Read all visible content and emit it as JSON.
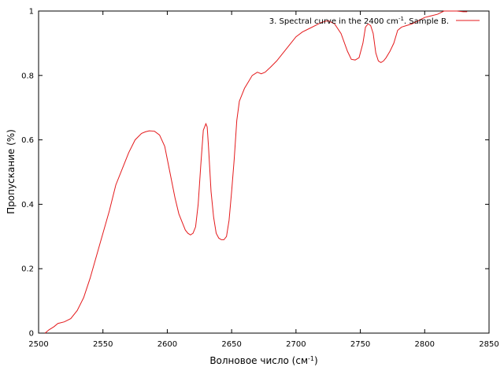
{
  "chart_data": {
    "type": "line",
    "title": "",
    "xlabel_main": "Волновое число (см",
    "xlabel_sup": "-1",
    "xlabel_close": ")",
    "ylabel": "Пропускание (%)",
    "xlim": [
      2500,
      2850
    ],
    "ylim": [
      0,
      1
    ],
    "x_ticks": [
      "2500",
      "2550",
      "2600",
      "2650",
      "2700",
      "2750",
      "2800",
      "2850"
    ],
    "y_ticks": [
      "0",
      "0.2",
      "0.4",
      "0.6",
      "0.8",
      "1"
    ],
    "grid": false,
    "legend_position": "top-right",
    "legend": {
      "text_main": "3. Spectral curve in the 2400 cm",
      "text_sup": "-1",
      "text_tail": ". Sample B."
    },
    "series": [
      {
        "color": "#e41a1c",
        "x": [
          2505,
          2508,
          2512,
          2515,
          2520,
          2525,
          2530,
          2535,
          2540,
          2545,
          2550,
          2555,
          2560,
          2565,
          2570,
          2575,
          2580,
          2583,
          2586,
          2590,
          2594,
          2598,
          2602,
          2606,
          2609,
          2612,
          2614,
          2616,
          2618,
          2620,
          2622,
          2624,
          2626,
          2628,
          2630,
          2631,
          2632,
          2634,
          2636,
          2638,
          2640,
          2642,
          2644,
          2646,
          2648,
          2650,
          2652,
          2654,
          2656,
          2658,
          2660,
          2663,
          2666,
          2670,
          2673,
          2676,
          2680,
          2685,
          2690,
          2695,
          2700,
          2705,
          2710,
          2715,
          2720,
          2725,
          2730,
          2735,
          2740,
          2743,
          2746,
          2749,
          2752,
          2754,
          2756,
          2758,
          2760,
          2762,
          2764,
          2766,
          2768,
          2770,
          2773,
          2776,
          2779,
          2782,
          2786,
          2790,
          2795,
          2800,
          2805,
          2810,
          2815,
          2820,
          2825,
          2830,
          2833
        ],
        "y": [
          0.0,
          0.01,
          0.02,
          0.03,
          0.035,
          0.045,
          0.07,
          0.11,
          0.17,
          0.24,
          0.31,
          0.38,
          0.46,
          0.51,
          0.56,
          0.6,
          0.62,
          0.625,
          0.628,
          0.627,
          0.615,
          0.58,
          0.5,
          0.42,
          0.37,
          0.34,
          0.32,
          0.31,
          0.305,
          0.31,
          0.33,
          0.4,
          0.52,
          0.63,
          0.65,
          0.64,
          0.58,
          0.44,
          0.36,
          0.31,
          0.295,
          0.29,
          0.29,
          0.3,
          0.35,
          0.44,
          0.54,
          0.66,
          0.72,
          0.74,
          0.76,
          0.78,
          0.8,
          0.81,
          0.805,
          0.81,
          0.825,
          0.845,
          0.87,
          0.895,
          0.92,
          0.935,
          0.945,
          0.955,
          0.965,
          0.97,
          0.96,
          0.93,
          0.875,
          0.85,
          0.848,
          0.855,
          0.9,
          0.95,
          0.96,
          0.955,
          0.93,
          0.87,
          0.845,
          0.84,
          0.845,
          0.855,
          0.875,
          0.9,
          0.94,
          0.95,
          0.955,
          0.96,
          0.97,
          0.98,
          0.985,
          0.99,
          1.0,
          1.01,
          1.005,
          0.998,
          0.998
        ]
      }
    ]
  }
}
